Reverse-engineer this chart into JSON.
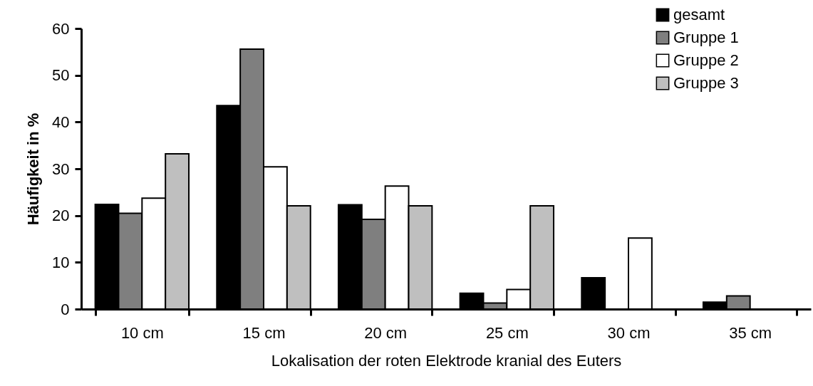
{
  "chart_data": {
    "type": "bar",
    "xlabel": "Lokalisation der roten Elektrode kranial des Euters",
    "ylabel": "Häufigkeit in %",
    "categories": [
      "10 cm",
      "15 cm",
      "20 cm",
      "25 cm",
      "30 cm",
      "35 cm"
    ],
    "series": [
      {
        "name": "gesamt",
        "color": "#000000",
        "values": [
          22.4,
          43.5,
          22.3,
          3.4,
          6.7,
          1.5
        ]
      },
      {
        "name": "Gruppe 1",
        "color": "#7f7f7f",
        "values": [
          20.5,
          55.6,
          19.2,
          1.3,
          0,
          2.8
        ]
      },
      {
        "name": "Gruppe 2",
        "color": "#ffffff",
        "values": [
          23.7,
          30.4,
          26.3,
          4.2,
          15.2,
          0
        ]
      },
      {
        "name": "Gruppe 3",
        "color": "#bfbfbf",
        "values": [
          33.2,
          22.1,
          22.1,
          22.1,
          0,
          0
        ]
      }
    ],
    "ylim": [
      0,
      60
    ],
    "yticks": [
      0,
      10,
      20,
      30,
      40,
      50,
      60
    ],
    "grid": false,
    "legend": "top right"
  }
}
